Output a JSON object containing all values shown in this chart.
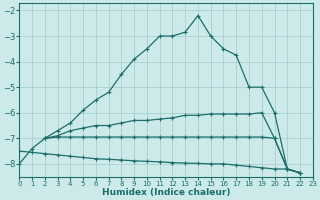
{
  "background_color": "#cceaea",
  "grid_color": "#aacece",
  "line_color": "#1c6e6a",
  "xlabel": "Humidex (Indice chaleur)",
  "xlim": [
    0,
    23
  ],
  "ylim": [
    -8.5,
    -1.7
  ],
  "yticks": [
    -8,
    -7,
    -6,
    -5,
    -4,
    -3,
    -2
  ],
  "xticks": [
    0,
    1,
    2,
    3,
    4,
    5,
    6,
    7,
    8,
    9,
    10,
    11,
    12,
    13,
    14,
    15,
    16,
    17,
    18,
    19,
    20,
    21,
    22,
    23
  ],
  "line1_x": [
    0,
    1,
    2,
    3,
    4,
    5,
    6,
    7,
    8,
    9,
    10,
    11,
    12,
    13,
    14,
    15,
    16,
    17,
    18,
    19,
    20,
    21,
    22
  ],
  "line1_y": [
    -8.0,
    -7.4,
    -7.0,
    -6.7,
    -6.4,
    -5.9,
    -5.5,
    -5.2,
    -4.5,
    -3.9,
    -3.5,
    -3.0,
    -3.0,
    -2.85,
    -2.2,
    -3.0,
    -3.5,
    -3.75,
    -5.0,
    -5.0,
    -6.0,
    -8.2,
    -8.35
  ],
  "line2_x": [
    2,
    3,
    4,
    5,
    6,
    7,
    8,
    9,
    10,
    11,
    12,
    13,
    14,
    15,
    16,
    17,
    18,
    19,
    20,
    21,
    22
  ],
  "line2_y": [
    -7.0,
    -6.9,
    -6.7,
    -6.6,
    -6.5,
    -6.5,
    -6.4,
    -6.3,
    -6.3,
    -6.25,
    -6.2,
    -6.1,
    -6.1,
    -6.05,
    -6.05,
    -6.05,
    -6.05,
    -6.0,
    -7.0,
    -8.2,
    -8.35
  ],
  "line3_x": [
    2,
    3,
    4,
    5,
    6,
    7,
    8,
    9,
    10,
    11,
    12,
    13,
    14,
    15,
    16,
    17,
    18,
    19,
    20,
    21,
    22
  ],
  "line3_y": [
    -7.0,
    -6.95,
    -6.95,
    -6.95,
    -6.95,
    -6.95,
    -6.95,
    -6.95,
    -6.95,
    -6.95,
    -6.95,
    -6.95,
    -6.95,
    -6.95,
    -6.95,
    -6.95,
    -6.95,
    -6.95,
    -7.0,
    -8.2,
    -8.35
  ],
  "line4_x": [
    0,
    1,
    2,
    3,
    4,
    5,
    6,
    7,
    8,
    9,
    10,
    11,
    12,
    13,
    14,
    15,
    16,
    17,
    18,
    19,
    20,
    21,
    22
  ],
  "line4_y": [
    -7.5,
    -7.55,
    -7.6,
    -7.65,
    -7.7,
    -7.75,
    -7.8,
    -7.82,
    -7.85,
    -7.88,
    -7.9,
    -7.92,
    -7.95,
    -7.97,
    -7.98,
    -8.0,
    -8.0,
    -8.05,
    -8.1,
    -8.15,
    -8.2,
    -8.2,
    -8.35
  ]
}
